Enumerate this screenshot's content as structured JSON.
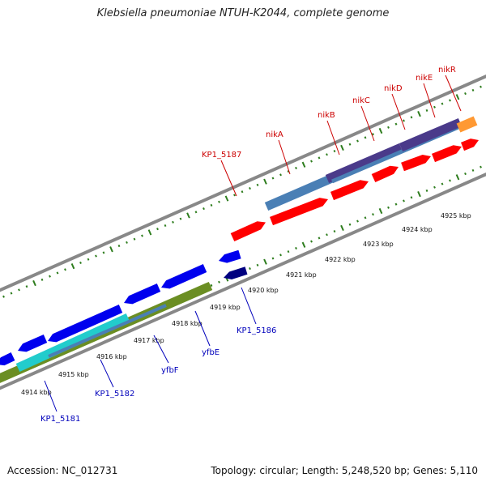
{
  "title": "Klebsiella pneumoniae NTUH-K2044, complete genome",
  "footer": {
    "accession": "Accession: NC_012731",
    "summary": "Topology: circular; Length: 5,248,520 bp; Genes: 5,110"
  },
  "colors": {
    "backbone": "#8a8a8a",
    "tick": "#2e7d1e",
    "forward_label": "#cc0000",
    "reverse_label": "#0000bb",
    "forward_gene": "#ff0000",
    "steelblue": "#4a7fb5",
    "purple": "#4a3a8a",
    "orange": "#ff9933",
    "reverse_gene": "#0000ee",
    "navy": "#000080",
    "cyan": "#22cccc",
    "olive": "#6b8e23"
  },
  "scale_labels": [
    "4914 kbp",
    "4915 kbp",
    "4916 kbp",
    "4917 kbp",
    "4918 kbp",
    "4919 kbp",
    "4920 kbp",
    "4921 kbp",
    "4922 kbp",
    "4923 kbp",
    "4924 kbp",
    "4925 kbp"
  ],
  "forward_gene_labels": [
    "KP1_5187",
    "nikA",
    "nikB",
    "nikC",
    "nikD",
    "nikE",
    "nikR"
  ],
  "reverse_gene_labels": [
    "KP1_5181",
    "KP1_5182",
    "yfbF",
    "yfbE",
    "KP1_5186"
  ]
}
